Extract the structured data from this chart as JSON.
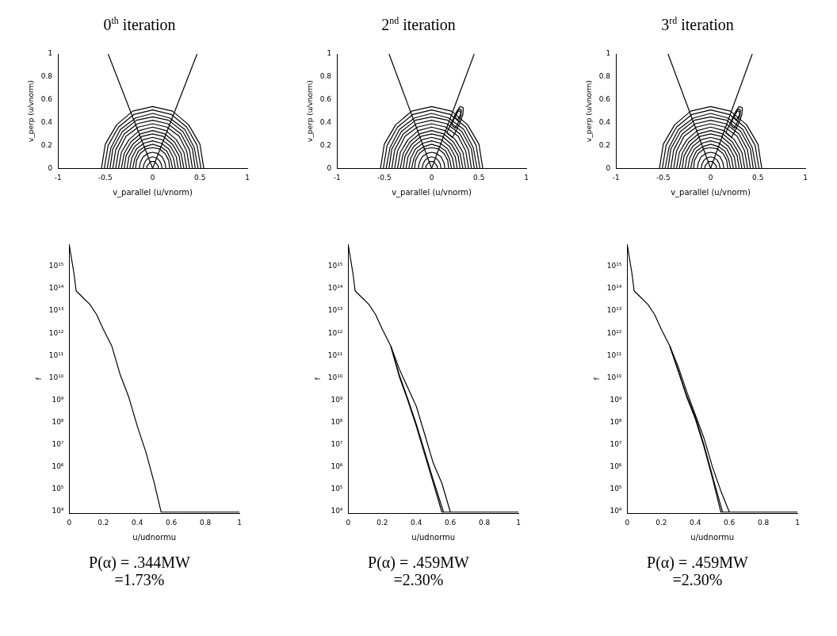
{
  "chart_data": [
    {
      "type": "line",
      "title": "0$^{th}$ iteration",
      "xlabel": "v_parallel (u/vnorm)",
      "ylabel": "v_perp (u/vnorm)",
      "xlim": [
        -1,
        1
      ],
      "xticks": [
        -1,
        -0.5,
        0,
        0.5,
        1
      ],
      "ylim": [
        0,
        1
      ],
      "yticks": [
        0,
        0.2,
        0.4,
        0.6,
        0.8,
        1
      ],
      "marker": "none",
      "grid": false,
      "legend": false,
      "series": [
        {
          "x": [
            -0.47,
            0
          ],
          "values": [
            1,
            0
          ],
          "color": "#000000"
        },
        {
          "x": [
            0.47,
            0
          ],
          "values": [
            1,
            0
          ],
          "color": "#000000"
        },
        {
          "x": [
            0.54,
            0.5,
            0.38,
            0.21,
            0,
            -0.21,
            -0.38,
            -0.5,
            -0.54
          ],
          "values": [
            0,
            0.21,
            0.38,
            0.5,
            0.54,
            0.5,
            0.38,
            0.21,
            0
          ],
          "color": "#000000"
        },
        {
          "x": [
            0.51,
            0.47,
            0.36,
            0.2,
            0,
            -0.2,
            -0.36,
            -0.47,
            -0.51
          ],
          "values": [
            0,
            0.2,
            0.36,
            0.47,
            0.51,
            0.47,
            0.36,
            0.2,
            0
          ],
          "color": "#000000"
        },
        {
          "x": [
            0.48,
            0.44,
            0.34,
            0.18,
            0,
            -0.18,
            -0.34,
            -0.44,
            -0.48
          ],
          "values": [
            0,
            0.18,
            0.34,
            0.44,
            0.48,
            0.44,
            0.34,
            0.18,
            0
          ],
          "color": "#000000"
        },
        {
          "x": [
            0.45,
            0.42,
            0.32,
            0.17,
            0,
            -0.17,
            -0.32,
            -0.42,
            -0.45
          ],
          "values": [
            0,
            0.17,
            0.32,
            0.42,
            0.45,
            0.42,
            0.32,
            0.17,
            0
          ],
          "color": "#000000"
        },
        {
          "x": [
            0.42,
            0.39,
            0.3,
            0.16,
            0,
            -0.16,
            -0.3,
            -0.39,
            -0.42
          ],
          "values": [
            0,
            0.16,
            0.3,
            0.39,
            0.42,
            0.39,
            0.3,
            0.16,
            0
          ],
          "color": "#000000"
        },
        {
          "x": [
            0.39,
            0.36,
            0.28,
            0.15,
            0,
            -0.15,
            -0.28,
            -0.36,
            -0.39
          ],
          "values": [
            0,
            0.15,
            0.28,
            0.36,
            0.39,
            0.36,
            0.28,
            0.15,
            0
          ],
          "color": "#000000"
        },
        {
          "x": [
            0.36,
            0.33,
            0.25,
            0.14,
            0,
            -0.14,
            -0.25,
            -0.33,
            -0.36
          ],
          "values": [
            0,
            0.14,
            0.25,
            0.33,
            0.36,
            0.33,
            0.25,
            0.14,
            0
          ],
          "color": "#000000"
        },
        {
          "x": [
            0.33,
            0.3,
            0.23,
            0.13,
            0,
            -0.13,
            -0.23,
            -0.3,
            -0.33
          ],
          "values": [
            0,
            0.13,
            0.23,
            0.3,
            0.33,
            0.3,
            0.23,
            0.13,
            0
          ],
          "color": "#000000"
        },
        {
          "x": [
            0.3,
            0.28,
            0.21,
            0.11,
            0,
            -0.11,
            -0.21,
            -0.28,
            -0.3
          ],
          "values": [
            0,
            0.11,
            0.21,
            0.28,
            0.3,
            0.28,
            0.21,
            0.11,
            0
          ],
          "color": "#000000"
        },
        {
          "x": [
            0.27,
            0.25,
            0.19,
            0.1,
            0,
            -0.1,
            -0.19,
            -0.25,
            -0.27
          ],
          "values": [
            0,
            0.1,
            0.19,
            0.25,
            0.27,
            0.25,
            0.19,
            0.1,
            0
          ],
          "color": "#000000"
        },
        {
          "x": [
            0.24,
            0.22,
            0.17,
            0.09,
            0,
            -0.09,
            -0.17,
            -0.22,
            -0.24
          ],
          "values": [
            0,
            0.09,
            0.17,
            0.22,
            0.24,
            0.22,
            0.17,
            0.09,
            0
          ],
          "color": "#000000"
        },
        {
          "x": [
            0.21,
            0.19,
            0.15,
            0.08,
            0,
            -0.08,
            -0.15,
            -0.19,
            -0.21
          ],
          "values": [
            0,
            0.08,
            0.15,
            0.19,
            0.21,
            0.19,
            0.15,
            0.08,
            0
          ],
          "color": "#000000"
        },
        {
          "x": [
            0.18,
            0.17,
            0.13,
            0.07,
            0,
            -0.07,
            -0.13,
            -0.17,
            -0.18
          ],
          "values": [
            0,
            0.07,
            0.13,
            0.17,
            0.18,
            0.17,
            0.13,
            0.07,
            0
          ],
          "color": "#000000"
        },
        {
          "x": [
            0.14,
            0.13,
            0.1,
            0.05,
            0,
            -0.05,
            -0.1,
            -0.13,
            -0.14
          ],
          "values": [
            0,
            0.05,
            0.1,
            0.13,
            0.14,
            0.13,
            0.1,
            0.05,
            0
          ],
          "color": "#000000"
        },
        {
          "x": [
            0.1,
            0.09,
            0.07,
            0.04,
            0,
            -0.04,
            -0.07,
            -0.09,
            -0.1
          ],
          "values": [
            0,
            0.04,
            0.07,
            0.09,
            0.1,
            0.09,
            0.07,
            0.04,
            0
          ],
          "color": "#000000"
        },
        {
          "x": [
            0.06,
            0.06,
            0.04,
            0.02,
            0,
            -0.02,
            -0.04,
            -0.06,
            -0.06
          ],
          "values": [
            0,
            0.02,
            0.04,
            0.06,
            0.06,
            0.06,
            0.04,
            0.02,
            0
          ],
          "color": "#000000"
        }
      ]
    },
    {
      "type": "line",
      "title": "2$^{nd}$ iteration",
      "xlabel": "v_parallel (u/vnorm)",
      "ylabel": "v_perp (u/vnorm)",
      "xlim": [
        -1,
        1
      ],
      "xticks": [
        -1,
        -0.5,
        0,
        0.5,
        1
      ],
      "ylim": [
        0,
        1
      ],
      "yticks": [
        0,
        0.2,
        0.4,
        0.6,
        0.8,
        1
      ],
      "marker": "none",
      "grid": false,
      "legend": false,
      "series": [
        {
          "x": [
            -0.45,
            0
          ],
          "values": [
            1,
            0
          ],
          "color": "#000000"
        },
        {
          "x": [
            0.45,
            0
          ],
          "values": [
            1,
            0
          ],
          "color": "#000000"
        },
        {
          "x": [
            0.54,
            0.5,
            0.38,
            0.21,
            0,
            -0.21,
            -0.38,
            -0.5,
            -0.54
          ],
          "values": [
            0,
            0.21,
            0.38,
            0.5,
            0.54,
            0.5,
            0.38,
            0.21,
            0
          ],
          "color": "#000000"
        },
        {
          "x": [
            0.51,
            0.47,
            0.36,
            0.2,
            0,
            -0.2,
            -0.36,
            -0.47,
            -0.51
          ],
          "values": [
            0,
            0.2,
            0.36,
            0.47,
            0.51,
            0.47,
            0.36,
            0.2,
            0
          ],
          "color": "#000000"
        },
        {
          "x": [
            0.48,
            0.44,
            0.34,
            0.18,
            0,
            -0.18,
            -0.34,
            -0.44,
            -0.48
          ],
          "values": [
            0,
            0.18,
            0.34,
            0.44,
            0.48,
            0.44,
            0.34,
            0.18,
            0
          ],
          "color": "#000000"
        },
        {
          "x": [
            0.45,
            0.42,
            0.32,
            0.17,
            0,
            -0.17,
            -0.32,
            -0.42,
            -0.45
          ],
          "values": [
            0,
            0.17,
            0.32,
            0.42,
            0.45,
            0.42,
            0.32,
            0.17,
            0
          ],
          "color": "#000000"
        },
        {
          "x": [
            0.42,
            0.39,
            0.3,
            0.16,
            0,
            -0.16,
            -0.3,
            -0.39,
            -0.42
          ],
          "values": [
            0,
            0.16,
            0.3,
            0.39,
            0.42,
            0.39,
            0.3,
            0.16,
            0
          ],
          "color": "#000000"
        },
        {
          "x": [
            0.39,
            0.36,
            0.28,
            0.15,
            0,
            -0.15,
            -0.28,
            -0.36,
            -0.39
          ],
          "values": [
            0,
            0.15,
            0.28,
            0.36,
            0.39,
            0.36,
            0.28,
            0.15,
            0
          ],
          "color": "#000000"
        },
        {
          "x": [
            0.36,
            0.33,
            0.25,
            0.14,
            0,
            -0.14,
            -0.25,
            -0.33,
            -0.36
          ],
          "values": [
            0,
            0.14,
            0.25,
            0.33,
            0.36,
            0.33,
            0.25,
            0.14,
            0
          ],
          "color": "#000000"
        },
        {
          "x": [
            0.33,
            0.3,
            0.23,
            0.13,
            0,
            -0.13,
            -0.23,
            -0.3,
            -0.33
          ],
          "values": [
            0,
            0.13,
            0.23,
            0.3,
            0.33,
            0.3,
            0.23,
            0.13,
            0
          ],
          "color": "#000000"
        },
        {
          "x": [
            0.3,
            0.28,
            0.21,
            0.11,
            0,
            -0.11,
            -0.21,
            -0.28,
            -0.3
          ],
          "values": [
            0,
            0.11,
            0.21,
            0.28,
            0.3,
            0.28,
            0.21,
            0.11,
            0
          ],
          "color": "#000000"
        },
        {
          "x": [
            0.27,
            0.25,
            0.19,
            0.1,
            0,
            -0.1,
            -0.19,
            -0.25,
            -0.27
          ],
          "values": [
            0,
            0.1,
            0.19,
            0.25,
            0.27,
            0.25,
            0.19,
            0.1,
            0
          ],
          "color": "#000000"
        },
        {
          "x": [
            0.24,
            0.22,
            0.17,
            0.09,
            0,
            -0.09,
            -0.17,
            -0.22,
            -0.24
          ],
          "values": [
            0,
            0.09,
            0.17,
            0.22,
            0.24,
            0.22,
            0.17,
            0.09,
            0
          ],
          "color": "#000000"
        },
        {
          "x": [
            0.21,
            0.19,
            0.15,
            0.08,
            0,
            -0.08,
            -0.15,
            -0.19,
            -0.21
          ],
          "values": [
            0,
            0.08,
            0.15,
            0.19,
            0.21,
            0.19,
            0.15,
            0.08,
            0
          ],
          "color": "#000000"
        },
        {
          "x": [
            0.18,
            0.17,
            0.13,
            0.07,
            0,
            -0.07,
            -0.13,
            -0.17,
            -0.18
          ],
          "values": [
            0,
            0.07,
            0.13,
            0.17,
            0.18,
            0.17,
            0.13,
            0.07,
            0
          ],
          "color": "#000000"
        },
        {
          "x": [
            0.14,
            0.13,
            0.1,
            0.05,
            0,
            -0.05,
            -0.1,
            -0.13,
            -0.14
          ],
          "values": [
            0,
            0.05,
            0.1,
            0.13,
            0.14,
            0.13,
            0.1,
            0.05,
            0
          ],
          "color": "#000000"
        },
        {
          "x": [
            0.1,
            0.09,
            0.07,
            0.04,
            0,
            -0.04,
            -0.07,
            -0.09,
            -0.1
          ],
          "values": [
            0,
            0.04,
            0.07,
            0.09,
            0.1,
            0.09,
            0.07,
            0.04,
            0
          ],
          "color": "#000000"
        },
        {
          "x": [
            0.06,
            0.06,
            0.04,
            0.02,
            0,
            -0.02,
            -0.04,
            -0.06,
            -0.06
          ],
          "values": [
            0,
            0.02,
            0.04,
            0.06,
            0.06,
            0.06,
            0.04,
            0.02,
            0
          ],
          "color": "#000000"
        },
        {
          "x": [
            0.16,
            0.21,
            0.26,
            0.3,
            0.335
          ],
          "values": [
            0.31,
            0.4,
            0.49,
            0.54,
            0.53
          ],
          "color": "#000000"
        },
        {
          "x": [
            0.16,
            0.22,
            0.26,
            0.3,
            0.33,
            0.335
          ],
          "values": [
            0.31,
            0.27,
            0.33,
            0.4,
            0.47,
            0.53
          ],
          "color": "#000000"
        },
        {
          "x": [
            0.21,
            0.25,
            0.29,
            0.315
          ],
          "values": [
            0.38,
            0.46,
            0.52,
            0.51
          ],
          "color": "#000000"
        },
        {
          "x": [
            0.21,
            0.25,
            0.28,
            0.31,
            0.315
          ],
          "values": [
            0.38,
            0.35,
            0.4,
            0.46,
            0.51
          ],
          "color": "#000000"
        },
        {
          "x": [
            0.25,
            0.28,
            0.305
          ],
          "values": [
            0.45,
            0.5,
            0.5
          ],
          "color": "#000000"
        },
        {
          "x": [
            0.25,
            0.27,
            0.3,
            0.305
          ],
          "values": [
            0.45,
            0.42,
            0.46,
            0.5
          ],
          "color": "#000000"
        }
      ]
    },
    {
      "type": "line",
      "title": "3$^{rd}$ iteration",
      "xlabel": "v_parallel (u/vnorm)",
      "ylabel": "v_perp (u/vnorm)",
      "xlim": [
        -1,
        1
      ],
      "xticks": [
        -1,
        -0.5,
        0,
        0.5,
        1
      ],
      "ylim": [
        0,
        1
      ],
      "yticks": [
        0,
        0.2,
        0.4,
        0.6,
        0.8,
        1
      ],
      "marker": "none",
      "grid": false,
      "legend": false,
      "series": [
        {
          "x": [
            -0.45,
            0
          ],
          "values": [
            1,
            0
          ],
          "color": "#000000"
        },
        {
          "x": [
            0.44,
            0
          ],
          "values": [
            1,
            0
          ],
          "color": "#000000"
        },
        {
          "x": [
            0.54,
            0.5,
            0.38,
            0.21,
            0,
            -0.21,
            -0.38,
            -0.5,
            -0.54
          ],
          "values": [
            0,
            0.21,
            0.38,
            0.5,
            0.54,
            0.5,
            0.38,
            0.21,
            0
          ],
          "color": "#000000"
        },
        {
          "x": [
            0.51,
            0.47,
            0.36,
            0.2,
            0,
            -0.2,
            -0.36,
            -0.47,
            -0.51
          ],
          "values": [
            0,
            0.2,
            0.36,
            0.47,
            0.51,
            0.47,
            0.36,
            0.2,
            0
          ],
          "color": "#000000"
        },
        {
          "x": [
            0.48,
            0.44,
            0.34,
            0.18,
            0,
            -0.18,
            -0.34,
            -0.44,
            -0.48
          ],
          "values": [
            0,
            0.18,
            0.34,
            0.44,
            0.48,
            0.44,
            0.34,
            0.18,
            0
          ],
          "color": "#000000"
        },
        {
          "x": [
            0.45,
            0.42,
            0.32,
            0.17,
            0,
            -0.17,
            -0.32,
            -0.42,
            -0.45
          ],
          "values": [
            0,
            0.17,
            0.32,
            0.42,
            0.45,
            0.42,
            0.32,
            0.17,
            0
          ],
          "color": "#000000"
        },
        {
          "x": [
            0.42,
            0.39,
            0.3,
            0.16,
            0,
            -0.16,
            -0.3,
            -0.39,
            -0.42
          ],
          "values": [
            0,
            0.16,
            0.3,
            0.39,
            0.42,
            0.39,
            0.3,
            0.16,
            0
          ],
          "color": "#000000"
        },
        {
          "x": [
            0.39,
            0.36,
            0.28,
            0.15,
            0,
            -0.15,
            -0.28,
            -0.36,
            -0.39
          ],
          "values": [
            0,
            0.15,
            0.28,
            0.36,
            0.39,
            0.36,
            0.28,
            0.15,
            0
          ],
          "color": "#000000"
        },
        {
          "x": [
            0.36,
            0.33,
            0.25,
            0.14,
            0,
            -0.14,
            -0.25,
            -0.33,
            -0.36
          ],
          "values": [
            0,
            0.14,
            0.25,
            0.33,
            0.36,
            0.33,
            0.25,
            0.14,
            0
          ],
          "color": "#000000"
        },
        {
          "x": [
            0.33,
            0.3,
            0.23,
            0.13,
            0,
            -0.13,
            -0.23,
            -0.3,
            -0.33
          ],
          "values": [
            0,
            0.13,
            0.23,
            0.3,
            0.33,
            0.3,
            0.23,
            0.13,
            0
          ],
          "color": "#000000"
        },
        {
          "x": [
            0.3,
            0.28,
            0.21,
            0.11,
            0,
            -0.11,
            -0.21,
            -0.28,
            -0.3
          ],
          "values": [
            0,
            0.11,
            0.21,
            0.28,
            0.3,
            0.28,
            0.21,
            0.11,
            0
          ],
          "color": "#000000"
        },
        {
          "x": [
            0.27,
            0.25,
            0.19,
            0.1,
            0,
            -0.1,
            -0.19,
            -0.25,
            -0.27
          ],
          "values": [
            0,
            0.1,
            0.19,
            0.25,
            0.27,
            0.25,
            0.19,
            0.1,
            0
          ],
          "color": "#000000"
        },
        {
          "x": [
            0.24,
            0.22,
            0.17,
            0.09,
            0,
            -0.09,
            -0.17,
            -0.22,
            -0.24
          ],
          "values": [
            0,
            0.09,
            0.17,
            0.22,
            0.24,
            0.22,
            0.17,
            0.09,
            0
          ],
          "color": "#000000"
        },
        {
          "x": [
            0.21,
            0.19,
            0.15,
            0.08,
            0,
            -0.08,
            -0.15,
            -0.19,
            -0.21
          ],
          "values": [
            0,
            0.08,
            0.15,
            0.19,
            0.21,
            0.19,
            0.15,
            0.08,
            0
          ],
          "color": "#000000"
        },
        {
          "x": [
            0.18,
            0.17,
            0.13,
            0.07,
            0,
            -0.07,
            -0.13,
            -0.17,
            -0.18
          ],
          "values": [
            0,
            0.07,
            0.13,
            0.17,
            0.18,
            0.17,
            0.13,
            0.07,
            0
          ],
          "color": "#000000"
        },
        {
          "x": [
            0.14,
            0.13,
            0.1,
            0.05,
            0,
            -0.05,
            -0.1,
            -0.13,
            -0.14
          ],
          "values": [
            0,
            0.05,
            0.1,
            0.13,
            0.14,
            0.13,
            0.1,
            0.05,
            0
          ],
          "color": "#000000"
        },
        {
          "x": [
            0.1,
            0.09,
            0.07,
            0.04,
            0,
            -0.04,
            -0.07,
            -0.09,
            -0.1
          ],
          "values": [
            0,
            0.04,
            0.07,
            0.09,
            0.1,
            0.09,
            0.07,
            0.04,
            0
          ],
          "color": "#000000"
        },
        {
          "x": [
            0.06,
            0.06,
            0.04,
            0.02,
            0,
            -0.02,
            -0.04,
            -0.06,
            -0.06
          ],
          "values": [
            0,
            0.02,
            0.04,
            0.06,
            0.06,
            0.06,
            0.04,
            0.02,
            0
          ],
          "color": "#000000"
        },
        {
          "x": [
            0.16,
            0.21,
            0.26,
            0.3,
            0.335
          ],
          "values": [
            0.31,
            0.4,
            0.49,
            0.54,
            0.53
          ],
          "color": "#000000"
        },
        {
          "x": [
            0.16,
            0.22,
            0.26,
            0.3,
            0.33,
            0.335
          ],
          "values": [
            0.31,
            0.27,
            0.33,
            0.4,
            0.47,
            0.53
          ],
          "color": "#000000"
        },
        {
          "x": [
            0.21,
            0.25,
            0.29,
            0.315
          ],
          "values": [
            0.38,
            0.46,
            0.52,
            0.51
          ],
          "color": "#000000"
        },
        {
          "x": [
            0.21,
            0.25,
            0.28,
            0.31,
            0.315
          ],
          "values": [
            0.38,
            0.35,
            0.4,
            0.46,
            0.51
          ],
          "color": "#000000"
        },
        {
          "x": [
            0.25,
            0.28,
            0.305
          ],
          "values": [
            0.45,
            0.5,
            0.5
          ],
          "color": "#000000"
        },
        {
          "x": [
            0.25,
            0.27,
            0.3,
            0.305
          ],
          "values": [
            0.45,
            0.42,
            0.46,
            0.5
          ],
          "color": "#000000"
        }
      ]
    },
    {
      "type": "line",
      "xlabel": "u/udnormu",
      "ylabel": "f",
      "log": "y",
      "xlim": [
        0,
        1
      ],
      "xticks": [
        0,
        0.2,
        0.4,
        0.6,
        0.8,
        1
      ],
      "ylim": [
        8000,
        1e+16
      ],
      "yticks": [
        {
          "value": 10000,
          "label": "10⁴"
        },
        {
          "value": 100000,
          "label": "10⁵"
        },
        {
          "value": 1000000,
          "label": "10⁶"
        },
        {
          "value": 10000000,
          "label": "10⁷"
        },
        {
          "value": 100000000,
          "label": "10⁸"
        },
        {
          "value": 1000000000,
          "label": "10⁹"
        },
        {
          "value": 10000000000.0,
          "label": "10¹⁰"
        },
        {
          "value": 100000000000.0,
          "label": "10¹¹"
        },
        {
          "value": 1000000000000.0,
          "label": "10¹²"
        },
        {
          "value": 10000000000000.0,
          "label": "10¹³"
        },
        {
          "value": 100000000000000.0,
          "label": "10¹⁴"
        },
        {
          "value": 1000000000000000.0,
          "label": "10¹⁵"
        }
      ],
      "marker": "none",
      "grid": false,
      "legend": false,
      "annotations": [
        "P(α) = .344MW",
        "=1.73%"
      ],
      "series": [
        {
          "x": [
            0,
            0.027,
            0.04,
            0.08,
            0.12,
            0.16,
            0.2,
            0.25,
            0.3,
            0.35,
            0.4,
            0.45,
            0.5,
            0.54,
            1
          ],
          "values": [
            9000000000000000.0,
            500000000000000.0,
            80000000000000.0,
            40000000000000.0,
            20000000000000.0,
            7000000000000.0,
            1500000000000.0,
            260000000000.0,
            13000000000.0,
            1300000000.0,
            65000000.0,
            4600000.0,
            180000.0,
            9000,
            9000
          ],
          "color": "#000000"
        }
      ]
    },
    {
      "type": "line",
      "xlabel": "u/udnormu",
      "ylabel": "f",
      "log": "y",
      "xlim": [
        0,
        1
      ],
      "xticks": [
        0,
        0.2,
        0.4,
        0.6,
        0.8,
        1
      ],
      "ylim": [
        8000,
        1e+16
      ],
      "yticks": [
        {
          "value": 10000,
          "label": "10⁴"
        },
        {
          "value": 100000,
          "label": "10⁵"
        },
        {
          "value": 1000000,
          "label": "10⁶"
        },
        {
          "value": 10000000,
          "label": "10⁷"
        },
        {
          "value": 100000000,
          "label": "10⁸"
        },
        {
          "value": 1000000000,
          "label": "10⁹"
        },
        {
          "value": 10000000000.0,
          "label": "10¹⁰"
        },
        {
          "value": 100000000000.0,
          "label": "10¹¹"
        },
        {
          "value": 1000000000000.0,
          "label": "10¹²"
        },
        {
          "value": 10000000000000.0,
          "label": "10¹³"
        },
        {
          "value": 100000000000000.0,
          "label": "10¹⁴"
        },
        {
          "value": 1000000000000000.0,
          "label": "10¹⁵"
        }
      ],
      "marker": "none",
      "grid": false,
      "legend": false,
      "annotations": [
        "P(α) = .459MW",
        "=2.30%"
      ],
      "series": [
        {
          "x": [
            0,
            0.027,
            0.04,
            0.08,
            0.12,
            0.16,
            0.2,
            0.25,
            0.3,
            0.35,
            0.4,
            0.45,
            0.5,
            0.55,
            1
          ],
          "values": [
            9000000000000000.0,
            500000000000000.0,
            80000000000000.0,
            40000000000000.0,
            20000000000000.0,
            7000000000000.0,
            1500000000000.0,
            260000000000.0,
            11000000000.0,
            930000000.0,
            65000000.0,
            3400000.0,
            180000.0,
            9000,
            9000
          ],
          "color": "#000000"
        },
        {
          "x": [
            0.25,
            0.3,
            0.35,
            0.4,
            0.45,
            0.5,
            0.56
          ],
          "values": [
            260000000000.0,
            13000000000.0,
            1100000000.0,
            80000000.0,
            4500000.0,
            240000.0,
            9000
          ],
          "color": "#000000"
        },
        {
          "x": [
            0.25,
            0.3,
            0.35,
            0.4,
            0.45,
            0.5,
            0.55,
            0.6
          ],
          "values": [
            260000000000.0,
            24000000000.0,
            3500000000.0,
            510000000.0,
            27000000.0,
            1400000.0,
            180000.0,
            9000
          ],
          "color": "#000000"
        }
      ]
    },
    {
      "type": "line",
      "xlabel": "u/udnormu",
      "ylabel": "f",
      "log": "y",
      "xlim": [
        0,
        1
      ],
      "xticks": [
        0,
        0.2,
        0.4,
        0.6,
        0.8,
        1
      ],
      "ylim": [
        8000,
        1e+16
      ],
      "yticks": [
        {
          "value": 10000,
          "label": "10⁴"
        },
        {
          "value": 100000,
          "label": "10⁵"
        },
        {
          "value": 1000000,
          "label": "10⁶"
        },
        {
          "value": 10000000,
          "label": "10⁷"
        },
        {
          "value": 100000000,
          "label": "10⁸"
        },
        {
          "value": 1000000000,
          "label": "10⁹"
        },
        {
          "value": 10000000000.0,
          "label": "10¹⁰"
        },
        {
          "value": 100000000000.0,
          "label": "10¹¹"
        },
        {
          "value": 1000000000000.0,
          "label": "10¹²"
        },
        {
          "value": 10000000000000.0,
          "label": "10¹³"
        },
        {
          "value": 100000000000000.0,
          "label": "10¹⁴"
        },
        {
          "value": 1000000000000000.0,
          "label": "10¹⁵"
        }
      ],
      "marker": "none",
      "grid": false,
      "legend": false,
      "annotations": [
        "P(α) = .459MW",
        "=2.30%"
      ],
      "series": [
        {
          "x": [
            0,
            0.027,
            0.04,
            0.08,
            0.12,
            0.16,
            0.2,
            0.25,
            0.3,
            0.35,
            0.4,
            0.45,
            0.5,
            0.55,
            1
          ],
          "values": [
            9000000000000000.0,
            500000000000000.0,
            80000000000000.0,
            40000000000000.0,
            20000000000000.0,
            7000000000000.0,
            1500000000000.0,
            260000000000.0,
            19000000000.0,
            1300000000.0,
            140000000.0,
            8100000.0,
            310000.0,
            9000,
            9000
          ],
          "color": "#000000"
        },
        {
          "x": [
            0.25,
            0.3,
            0.35,
            0.4,
            0.45,
            0.5,
            0.56
          ],
          "values": [
            260000000000.0,
            20000000000.0,
            1500000000.0,
            170000000.0,
            10000000.0,
            400000.0,
            9000
          ],
          "color": "#000000"
        },
        {
          "x": [
            0.25,
            0.3,
            0.35,
            0.4,
            0.45,
            0.5,
            0.55,
            0.6
          ],
          "values": [
            260000000000.0,
            30000000000.0,
            2300000000.0,
            210000000.0,
            20000000.0,
            1000000.0,
            80000.0,
            9000
          ],
          "color": "#000000"
        }
      ]
    }
  ]
}
